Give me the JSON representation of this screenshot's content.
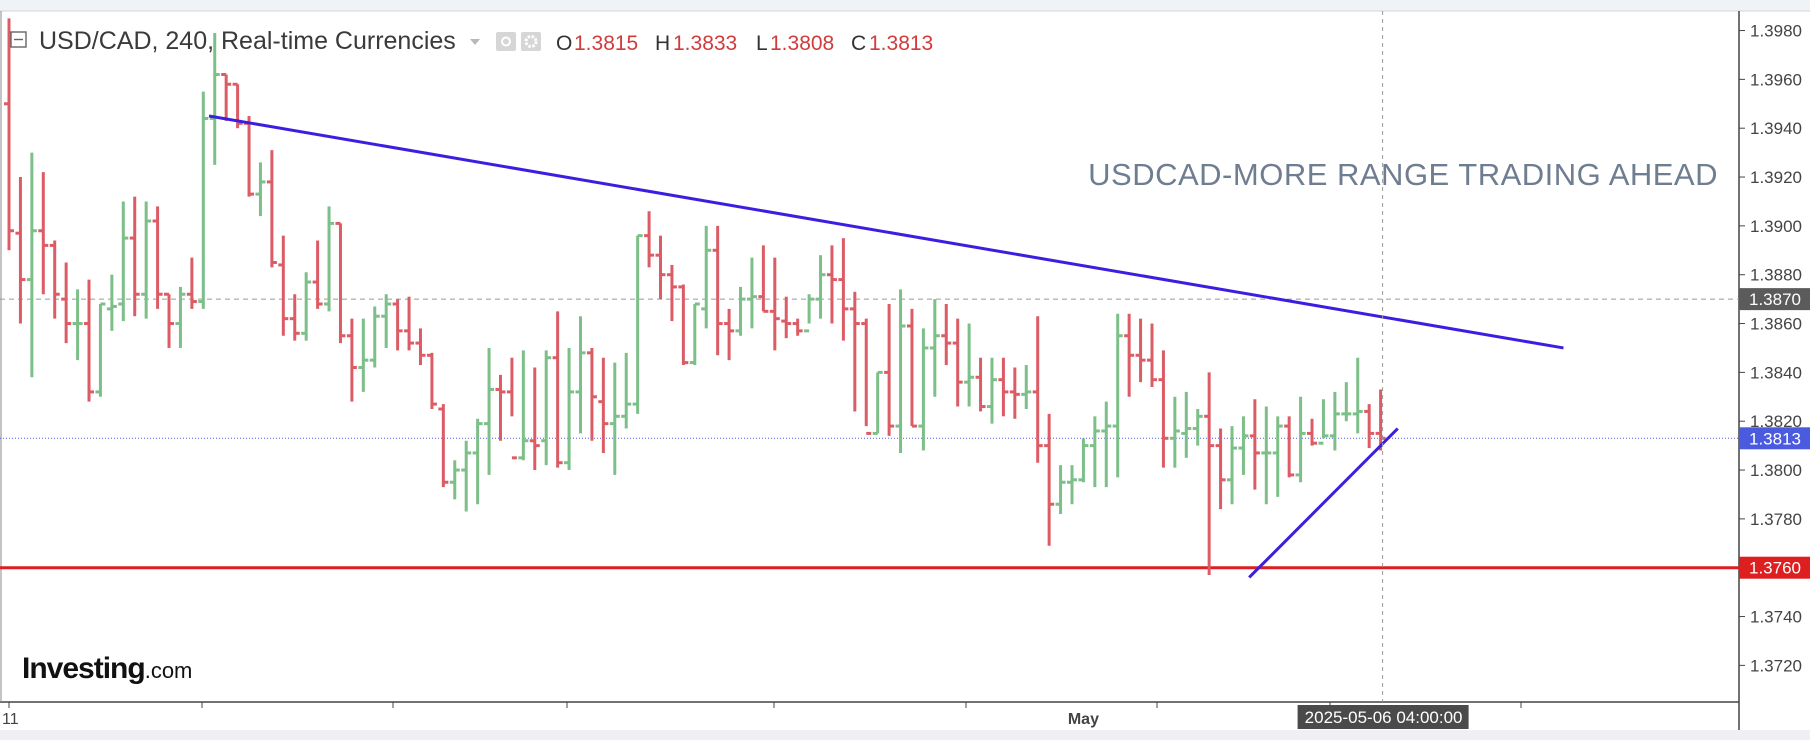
{
  "legend": {
    "symbol": "USD/CAD",
    "interval": "240",
    "source": "Real-time Currencies",
    "title_text": "USD/CAD, 240, Real-time Currencies",
    "ohlc": [
      {
        "key": "O",
        "value": "1.3815"
      },
      {
        "key": "H",
        "value": "1.3833"
      },
      {
        "key": "L",
        "value": "1.3808"
      },
      {
        "key": "C",
        "value": "1.3813"
      }
    ]
  },
  "annotation": "USDCAD-MORE RANGE TRADING AHEAD",
  "branding": {
    "name": "Investing",
    "suffix": ".com"
  },
  "price_tags": [
    {
      "label": "1.3870",
      "value": 1.387,
      "color": "#5b5b5b"
    },
    {
      "label": "1.3813",
      "value": 1.3813,
      "color": "#4b5be0"
    },
    {
      "label": "1.3760",
      "value": 1.376,
      "color": "#dd1f1f"
    }
  ],
  "crosshair_time": "2025-05-06 04:00:00",
  "colors": {
    "up": "#7cbf89",
    "down": "#dc5c66",
    "resistance": "#3b1fe0",
    "support": "#dd1f1f",
    "grid_price": "#9a9a9a",
    "current_price": "#4b5be0"
  },
  "chart_data": {
    "type": "ohlc",
    "ylim": [
      1.3705,
      1.3988
    ],
    "yticks": [
      "1.3980",
      "1.3960",
      "1.3940",
      "1.3920",
      "1.3900",
      "1.3880",
      "1.3860",
      "1.3840",
      "1.3820",
      "1.3800",
      "1.3780",
      "1.3760",
      "1.3740",
      "1.3720"
    ],
    "xticks": [
      {
        "label": "11",
        "index": 0
      },
      {
        "label": "May",
        "index": 94
      }
    ],
    "bars": [
      [
        1.395,
        1.3985,
        1.389,
        1.3898
      ],
      [
        1.3897,
        1.392,
        1.386,
        1.3878
      ],
      [
        1.3878,
        1.393,
        1.3838,
        1.3898
      ],
      [
        1.3898,
        1.3922,
        1.3872,
        1.3892
      ],
      [
        1.3892,
        1.3894,
        1.3862,
        1.3872
      ],
      [
        1.387,
        1.3885,
        1.3852,
        1.386
      ],
      [
        1.386,
        1.3874,
        1.3845,
        1.386
      ],
      [
        1.386,
        1.3878,
        1.3828,
        1.3832
      ],
      [
        1.3832,
        1.3868,
        1.383,
        1.3868
      ],
      [
        1.3866,
        1.388,
        1.3857,
        1.3867
      ],
      [
        1.3868,
        1.391,
        1.3861,
        1.3895
      ],
      [
        1.3895,
        1.3912,
        1.3863,
        1.3872
      ],
      [
        1.3872,
        1.391,
        1.3862,
        1.3902
      ],
      [
        1.3902,
        1.3908,
        1.3866,
        1.3872
      ],
      [
        1.3872,
        1.3872,
        1.385,
        1.386
      ],
      [
        1.386,
        1.3875,
        1.385,
        1.3872
      ],
      [
        1.3872,
        1.3887,
        1.3866,
        1.3869
      ],
      [
        1.3869,
        1.3955,
        1.3866,
        1.3944
      ],
      [
        1.3944,
        1.3979,
        1.3925,
        1.3962
      ],
      [
        1.3962,
        1.3962,
        1.3943,
        1.3958
      ],
      [
        1.3958,
        1.3958,
        1.394,
        1.3942
      ],
      [
        1.3942,
        1.3945,
        1.3912,
        1.3913
      ],
      [
        1.3913,
        1.3926,
        1.3904,
        1.3918
      ],
      [
        1.3918,
        1.3931,
        1.3883,
        1.3885
      ],
      [
        1.3884,
        1.3896,
        1.3855,
        1.3862
      ],
      [
        1.3862,
        1.3872,
        1.3853,
        1.3856
      ],
      [
        1.3856,
        1.3881,
        1.3853,
        1.3877
      ],
      [
        1.3877,
        1.3894,
        1.3866,
        1.3868
      ],
      [
        1.3868,
        1.3908,
        1.3865,
        1.3901
      ],
      [
        1.3901,
        1.3901,
        1.3852,
        1.3855
      ],
      [
        1.3855,
        1.3862,
        1.3828,
        1.3842
      ],
      [
        1.3842,
        1.3862,
        1.3832,
        1.3845
      ],
      [
        1.3845,
        1.3867,
        1.3842,
        1.3863
      ],
      [
        1.3863,
        1.3872,
        1.385,
        1.3868
      ],
      [
        1.3868,
        1.387,
        1.3849,
        1.3857
      ],
      [
        1.3857,
        1.3871,
        1.3849,
        1.3852
      ],
      [
        1.3852,
        1.3858,
        1.3843,
        1.3847
      ],
      [
        1.3847,
        1.3848,
        1.3825,
        1.3827
      ],
      [
        1.3825,
        1.3827,
        1.3793,
        1.3795
      ],
      [
        1.3795,
        1.3804,
        1.3788,
        1.38
      ],
      [
        1.38,
        1.3812,
        1.3783,
        1.3807
      ],
      [
        1.3807,
        1.3821,
        1.3786,
        1.3819
      ],
      [
        1.3819,
        1.385,
        1.3798,
        1.3833
      ],
      [
        1.3833,
        1.3839,
        1.3812,
        1.3832
      ],
      [
        1.3832,
        1.3846,
        1.3822,
        1.3805
      ],
      [
        1.3805,
        1.3849,
        1.3804,
        1.3812
      ],
      [
        1.3812,
        1.3842,
        1.38,
        1.381
      ],
      [
        1.3812,
        1.3849,
        1.3802,
        1.3846
      ],
      [
        1.3846,
        1.3865,
        1.3801,
        1.3803
      ],
      [
        1.3803,
        1.385,
        1.38,
        1.3832
      ],
      [
        1.3832,
        1.3863,
        1.3815,
        1.3848
      ],
      [
        1.3848,
        1.385,
        1.3812,
        1.383
      ],
      [
        1.3828,
        1.3846,
        1.3807,
        1.3819
      ],
      [
        1.3819,
        1.3844,
        1.3798,
        1.3822
      ],
      [
        1.3822,
        1.3848,
        1.3817,
        1.3827
      ],
      [
        1.3827,
        1.3896,
        1.3823,
        1.3896
      ],
      [
        1.3896,
        1.3906,
        1.3883,
        1.3888
      ],
      [
        1.3888,
        1.3896,
        1.387,
        1.388
      ],
      [
        1.388,
        1.3884,
        1.3861,
        1.3875
      ],
      [
        1.3875,
        1.3876,
        1.3843,
        1.3844
      ],
      [
        1.3844,
        1.3868,
        1.3843,
        1.3868
      ],
      [
        1.3866,
        1.39,
        1.3858,
        1.389
      ],
      [
        1.389,
        1.39,
        1.3847,
        1.386
      ],
      [
        1.386,
        1.3866,
        1.3845,
        1.3857
      ],
      [
        1.3857,
        1.3875,
        1.3855,
        1.387
      ],
      [
        1.387,
        1.3887,
        1.3858,
        1.3871
      ],
      [
        1.3871,
        1.3892,
        1.3865,
        1.3865
      ],
      [
        1.3865,
        1.3887,
        1.3849,
        1.3862
      ],
      [
        1.3861,
        1.3871,
        1.3854,
        1.386
      ],
      [
        1.386,
        1.3862,
        1.3855,
        1.3857
      ],
      [
        1.3857,
        1.3872,
        1.386,
        1.387
      ],
      [
        1.387,
        1.3888,
        1.3862,
        1.388
      ],
      [
        1.388,
        1.3892,
        1.386,
        1.3878
      ],
      [
        1.3878,
        1.3895,
        1.3853,
        1.3866
      ],
      [
        1.3866,
        1.3873,
        1.3824,
        1.386
      ],
      [
        1.386,
        1.3862,
        1.3818,
        1.3815
      ],
      [
        1.3815,
        1.384,
        1.3815,
        1.384
      ],
      [
        1.384,
        1.3868,
        1.3814,
        1.3818
      ],
      [
        1.3818,
        1.3874,
        1.3807,
        1.3859
      ],
      [
        1.3859,
        1.3866,
        1.3818,
        1.3818
      ],
      [
        1.3818,
        1.3858,
        1.3808,
        1.385
      ],
      [
        1.385,
        1.387,
        1.383,
        1.3855
      ],
      [
        1.3855,
        1.3868,
        1.3843,
        1.3852
      ],
      [
        1.3852,
        1.3862,
        1.3826,
        1.3836
      ],
      [
        1.3836,
        1.386,
        1.3826,
        1.3838
      ],
      [
        1.3838,
        1.3846,
        1.3824,
        1.3826
      ],
      [
        1.3826,
        1.3846,
        1.3819,
        1.3837
      ],
      [
        1.3837,
        1.3846,
        1.3822,
        1.3832
      ],
      [
        1.3832,
        1.3842,
        1.3821,
        1.3831
      ],
      [
        1.3831,
        1.3843,
        1.3825,
        1.3832
      ],
      [
        1.3832,
        1.3863,
        1.3803,
        1.381
      ],
      [
        1.381,
        1.3823,
        1.3769,
        1.3786
      ],
      [
        1.3786,
        1.3802,
        1.3782,
        1.3795
      ],
      [
        1.3795,
        1.3802,
        1.3786,
        1.3796
      ],
      [
        1.3796,
        1.3813,
        1.3795,
        1.381
      ],
      [
        1.381,
        1.3822,
        1.3793,
        1.3816
      ],
      [
        1.3816,
        1.3828,
        1.3793,
        1.3818
      ],
      [
        1.3818,
        1.3864,
        1.3797,
        1.3855
      ],
      [
        1.3855,
        1.3864,
        1.383,
        1.3847
      ],
      [
        1.3847,
        1.3862,
        1.3836,
        1.3845
      ],
      [
        1.3845,
        1.386,
        1.3834,
        1.3837
      ],
      [
        1.3837,
        1.3849,
        1.3801,
        1.3813
      ],
      [
        1.3813,
        1.383,
        1.3801,
        1.3816
      ],
      [
        1.3815,
        1.3832,
        1.3805,
        1.3817
      ],
      [
        1.3817,
        1.3825,
        1.381,
        1.3822
      ],
      [
        1.3822,
        1.384,
        1.3757,
        1.381
      ],
      [
        1.381,
        1.3817,
        1.3784,
        1.3796
      ],
      [
        1.3796,
        1.3818,
        1.3786,
        1.3809
      ],
      [
        1.3809,
        1.3822,
        1.3798,
        1.3814
      ],
      [
        1.3814,
        1.3829,
        1.3792,
        1.3807
      ],
      [
        1.3807,
        1.3826,
        1.3786,
        1.3807
      ],
      [
        1.3807,
        1.3822,
        1.3789,
        1.3818
      ],
      [
        1.3818,
        1.3822,
        1.3797,
        1.3798
      ],
      [
        1.3798,
        1.383,
        1.3795,
        1.3815
      ],
      [
        1.3815,
        1.3821,
        1.381,
        1.3811
      ],
      [
        1.3811,
        1.3829,
        1.3813,
        1.3814
      ],
      [
        1.3814,
        1.3832,
        1.3808,
        1.3823
      ],
      [
        1.3823,
        1.3836,
        1.382,
        1.3823
      ],
      [
        1.3823,
        1.3846,
        1.3815,
        1.3824
      ],
      [
        1.3824,
        1.3827,
        1.3809,
        1.3815
      ],
      [
        1.3815,
        1.3833,
        1.3808,
        1.3813
      ]
    ],
    "trendlines": [
      {
        "name": "resistance",
        "from": {
          "index": 17.5,
          "price": 1.3945
        },
        "to": {
          "index": 136,
          "price": 1.385
        }
      },
      {
        "name": "support",
        "from": {
          "index": 108.5,
          "price": 1.3756
        },
        "to": {
          "index": 121.5,
          "price": 1.3817
        }
      }
    ],
    "horizontal_levels": [
      {
        "name": "support-level",
        "price": 1.376
      },
      {
        "name": "price-line",
        "price": 1.387
      },
      {
        "name": "current-price-line",
        "price": 1.3813
      }
    ]
  }
}
